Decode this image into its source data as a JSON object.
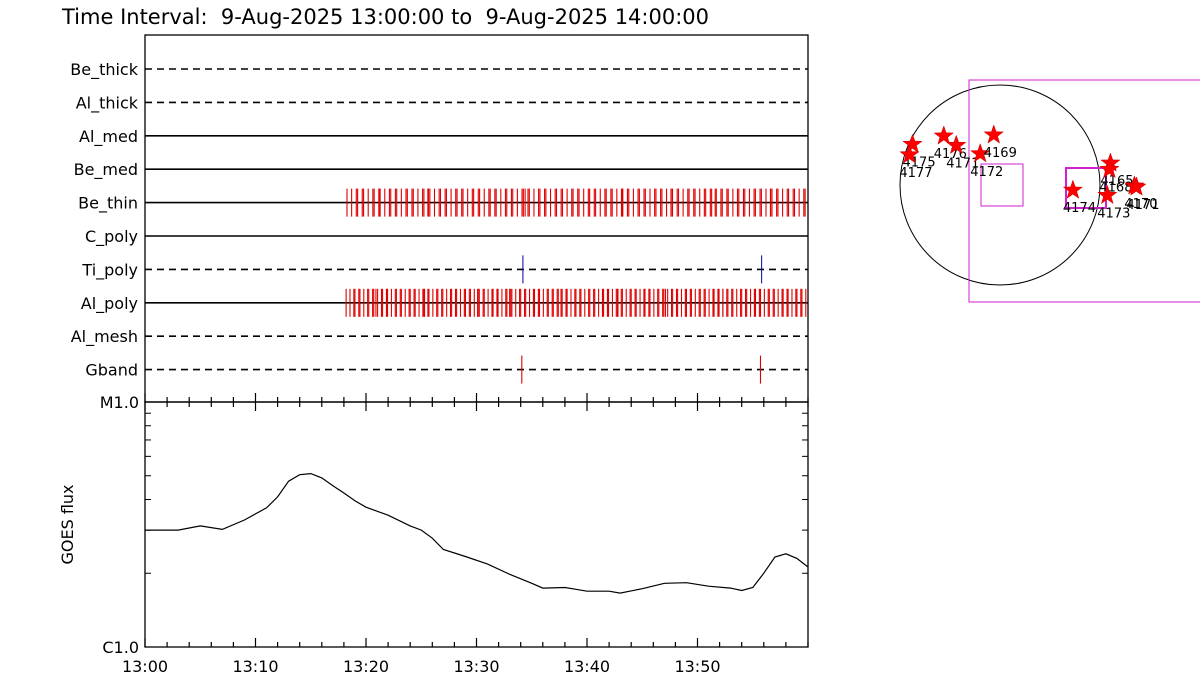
{
  "chart_data": [
    {
      "type": "timeline",
      "title": "Time Interval:  9-Aug-2025 13:00:00 to  9-Aug-2025 14:00:00",
      "rows": [
        {
          "label": "Be_thick",
          "style": "dashed",
          "events": [],
          "color": ""
        },
        {
          "label": "Al_thick",
          "style": "dashed",
          "events": [],
          "color": ""
        },
        {
          "label": "Al_med",
          "style": "solid",
          "events": [],
          "color": ""
        },
        {
          "label": "Be_med",
          "style": "solid",
          "events": [],
          "color": ""
        },
        {
          "label": "Be_thin",
          "style": "solid",
          "color": "#e00000",
          "events_range": [
            18.4,
            59.9
          ],
          "events_step": 0.3,
          "events_jitter": 0.12,
          "events_thick": [
            21.2,
            25.6,
            34.4,
            43.2,
            47.6,
            51.6,
            56.6
          ]
        },
        {
          "label": "C_poly",
          "style": "solid",
          "events": [],
          "color": ""
        },
        {
          "label": "Ti_poly",
          "style": "dashed",
          "color": "#1a1aa8",
          "events": [
            34.2,
            55.8
          ]
        },
        {
          "label": "Al_poly",
          "style": "solid",
          "color": "#e00000",
          "events_range": [
            18.3,
            59.9
          ],
          "events_step": 0.25,
          "events_jitter": 0.1,
          "events_thick": [
            20.9,
            25.3,
            30.1,
            33.0,
            37.4,
            42.8,
            47.1,
            52.3
          ]
        },
        {
          "label": "Al_mesh",
          "style": "dashed",
          "events": [],
          "color": ""
        },
        {
          "label": "Gband",
          "style": "dashed",
          "color": "#e00000",
          "events": [
            34.1,
            55.7
          ]
        }
      ]
    },
    {
      "type": "line",
      "ylabel": "GOES flux",
      "y_tick_labels": [
        "M1.0",
        "C1.0"
      ],
      "ylim": [
        1.0,
        10.0
      ],
      "x_tick_labels": [
        "13:00",
        "13:10",
        "13:20",
        "13:30",
        "13:40",
        "13:50"
      ],
      "x_ticks_min": [
        0,
        10,
        20,
        30,
        40,
        50
      ],
      "xlim_min": [
        0,
        60
      ],
      "series": [
        {
          "values": [
            [
              0,
              3.0
            ],
            [
              3,
              3.0
            ],
            [
              5,
              3.12
            ],
            [
              7,
              3.02
            ],
            [
              9,
              3.3
            ],
            [
              11,
              3.7
            ],
            [
              12,
              4.1
            ],
            [
              13,
              4.75
            ],
            [
              14,
              5.05
            ],
            [
              15,
              5.1
            ],
            [
              16,
              4.9
            ],
            [
              17,
              4.55
            ],
            [
              18,
              4.25
            ],
            [
              19,
              3.95
            ],
            [
              20,
              3.72
            ],
            [
              22,
              3.45
            ],
            [
              24,
              3.12
            ],
            [
              25,
              3.0
            ],
            [
              26,
              2.78
            ],
            [
              27,
              2.5
            ],
            [
              29,
              2.34
            ],
            [
              31,
              2.18
            ],
            [
              33,
              1.98
            ],
            [
              35,
              1.82
            ],
            [
              36,
              1.74
            ],
            [
              38,
              1.75
            ],
            [
              39,
              1.72
            ],
            [
              40,
              1.69
            ],
            [
              42,
              1.69
            ],
            [
              43,
              1.66
            ],
            [
              45,
              1.73
            ],
            [
              47,
              1.82
            ],
            [
              49,
              1.83
            ],
            [
              51,
              1.77
            ],
            [
              53,
              1.74
            ],
            [
              54,
              1.7
            ],
            [
              55,
              1.75
            ],
            [
              56,
              2.0
            ],
            [
              57,
              2.33
            ],
            [
              58,
              2.4
            ],
            [
              59,
              2.3
            ],
            [
              60,
              2.12
            ]
          ]
        }
      ]
    },
    {
      "type": "scatter",
      "title": "",
      "points": [
        {
          "x": -840,
          "y": 390,
          "label": "4175"
        },
        {
          "x": -540,
          "y": 470,
          "label": "4176"
        },
        {
          "x": -870,
          "y": 290,
          "label": "4177"
        },
        {
          "x": -420,
          "y": 380,
          "label": "4171"
        },
        {
          "x": -190,
          "y": 300,
          "label": "4172"
        },
        {
          "x": -60,
          "y": 480,
          "label": "4169"
        },
        {
          "x": 1060,
          "y": 210,
          "label": "4165"
        },
        {
          "x": 1050,
          "y": 150,
          "label": "4168"
        },
        {
          "x": 700,
          "y": -50,
          "label": "4174"
        },
        {
          "x": 1030,
          "y": -100,
          "label": "4173"
        },
        {
          "x": 1290,
          "y": -10,
          "label": "4170"
        },
        {
          "x": 1310,
          "y": -20,
          "label": "4171"
        }
      ]
    }
  ]
}
